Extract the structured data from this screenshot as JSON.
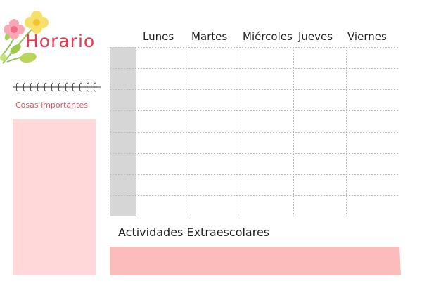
{
  "header": {
    "title": "Horario"
  },
  "sidebar": {
    "subtitle": "Cosas importantes",
    "notes_color": "#ffd8da"
  },
  "schedule": {
    "days": [
      "Lunes",
      "Martes",
      "Miércoles",
      "Jueves",
      "Viernes"
    ],
    "rows": 8,
    "time_column_color": "#d6d6d6"
  },
  "activities": {
    "title": "Actividades Extraescolares",
    "box_color": "#fbbcbc"
  },
  "colors": {
    "title": "#e8384f",
    "subtitle": "#d9556a",
    "grid_line": "#b8b8b8"
  },
  "icons": {
    "flowers": "flower-bouquet-icon",
    "divider": "vine-divider-icon"
  }
}
